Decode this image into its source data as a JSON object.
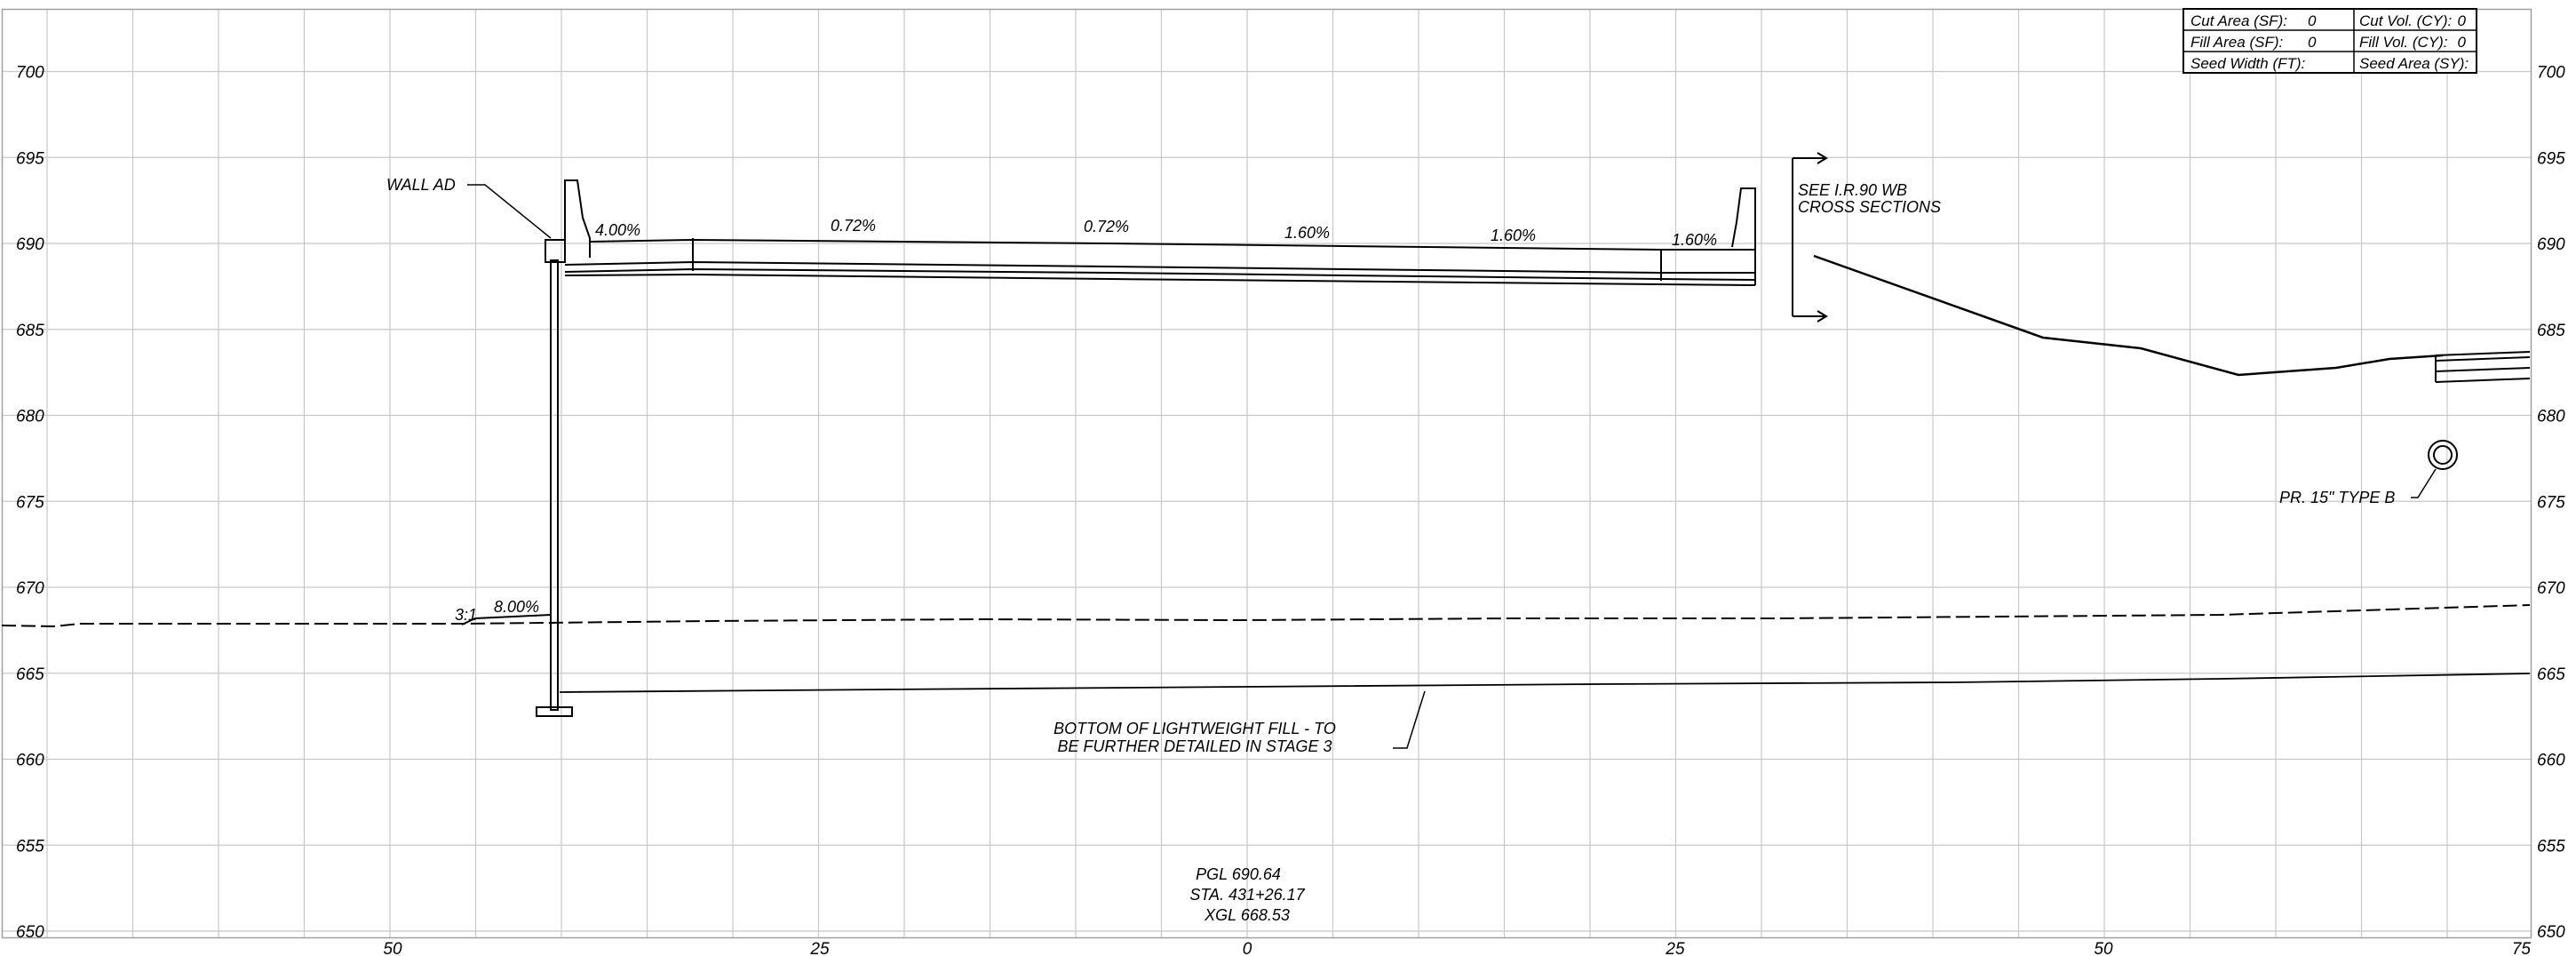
{
  "chart_data": {
    "type": "cross-section",
    "y_ticks": [
      "700",
      "695",
      "690",
      "685",
      "680",
      "675",
      "670",
      "665",
      "660",
      "655",
      "650"
    ],
    "x_ticks": [
      "50",
      "25",
      "0",
      "25",
      "50",
      "75"
    ],
    "ylim": [
      650,
      704
    ],
    "grid": true
  },
  "quantities": {
    "cut_area_label": "Cut Area (SF):",
    "cut_area_value": "0",
    "cut_vol_label": "Cut Vol. (CY):",
    "cut_vol_value": "0",
    "fill_area_label": "Fill Area (SF):",
    "fill_area_value": "0",
    "fill_vol_label": "Fill Vol. (CY):",
    "fill_vol_value": "0",
    "seed_width_label": "Seed Width (FT):",
    "seed_area_label": "Seed Area (SY):"
  },
  "slopes": {
    "s1": "4.00%",
    "s2": "0.72%",
    "s3": "0.72%",
    "s4": "1.60%",
    "s5": "1.60%",
    "s6": "1.60%",
    "embankment_ratio": "3:1",
    "embankment_pct": "8.00%"
  },
  "notes": {
    "wall": "WALL AD",
    "see_line1": "SEE I.R.90 WB",
    "see_line2": "CROSS SECTIONS",
    "pipe": "PR. 15\" TYPE B",
    "fill_line1": "BOTTOM OF LIGHTWEIGHT FILL - TO",
    "fill_line2": "BE FURTHER DETAILED IN STAGE 3"
  },
  "centerline": {
    "pgl": "PGL 690.64",
    "station": "STA. 431+26.17",
    "xgl": "XGL 668.53"
  }
}
